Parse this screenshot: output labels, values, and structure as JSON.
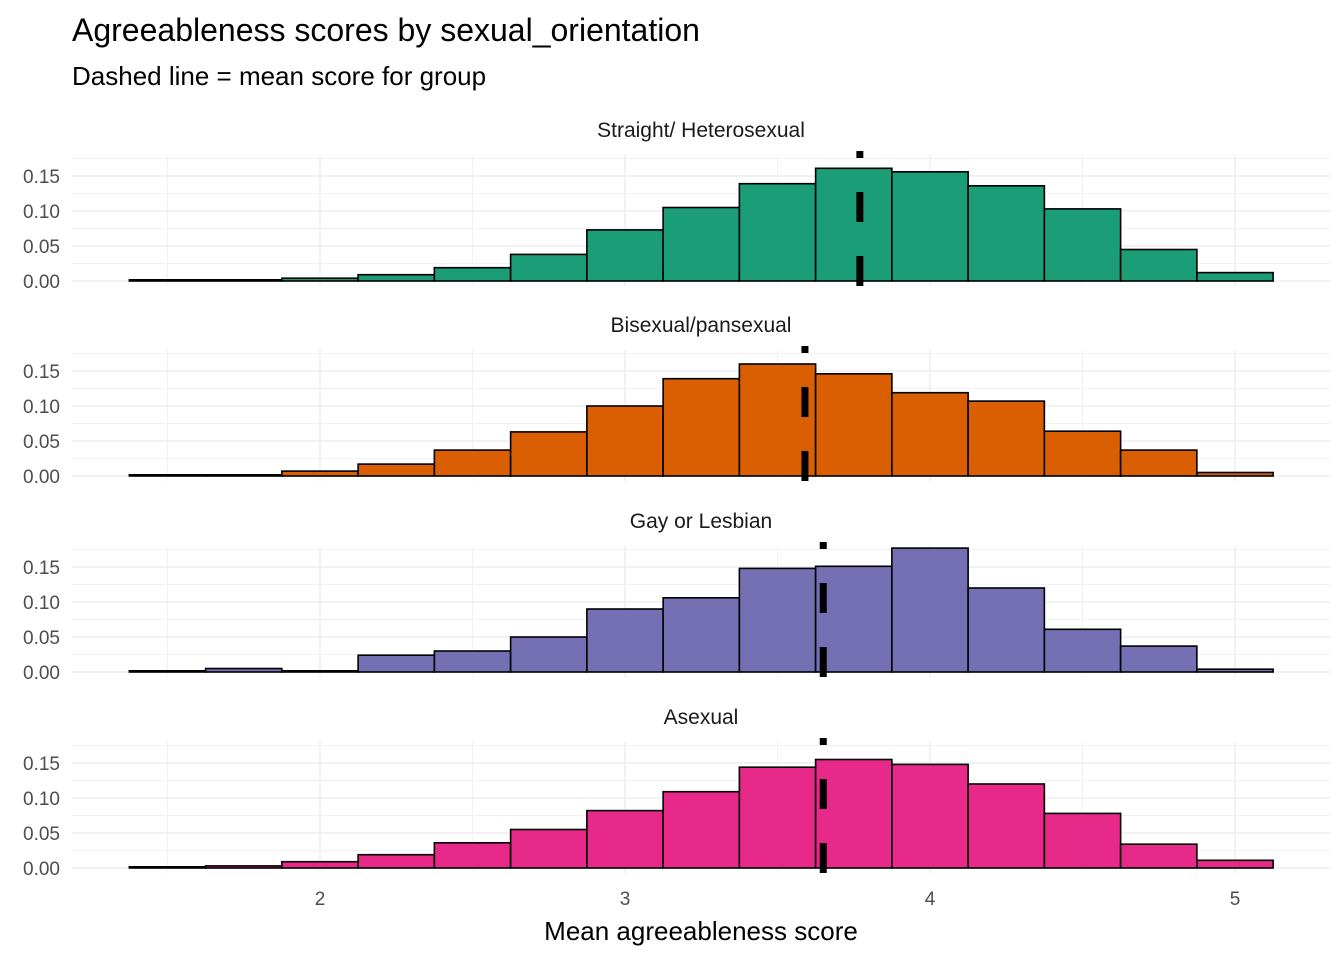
{
  "chart_data": {
    "type": "bar",
    "title": "Agreeableness scores by sexual_orientation",
    "subtitle": "Dashed line = mean score for group",
    "xlabel": "Mean agreeableness score",
    "ylabel": "",
    "xlim": [
      1.25,
      5.15
    ],
    "ylim": [
      0,
      0.18
    ],
    "x_ticks": [
      2,
      3,
      4,
      5
    ],
    "y_ticks": [
      0,
      0.05,
      0.1,
      0.15
    ],
    "y_tick_labels": [
      "0.00",
      "0.05",
      "0.10",
      "0.15"
    ],
    "grid": true,
    "legend": "none",
    "bin_width": 0.25,
    "bin_centers": [
      1.5,
      1.75,
      2.0,
      2.25,
      2.5,
      2.75,
      3.0,
      3.25,
      3.5,
      3.75,
      4.0,
      4.25,
      4.5,
      4.75,
      5.0
    ],
    "series": [
      {
        "name": "Straight/ Heterosexual",
        "color": "#1b9e77",
        "mean": 3.77,
        "values": [
          0.001,
          0.001,
          0.004,
          0.009,
          0.019,
          0.038,
          0.073,
          0.105,
          0.139,
          0.161,
          0.156,
          0.136,
          0.103,
          0.045,
          0.012
        ]
      },
      {
        "name": "Bisexual/pansexual",
        "color": "#d95f02",
        "mean": 3.59,
        "values": [
          0.001,
          0.001,
          0.007,
          0.017,
          0.037,
          0.063,
          0.1,
          0.139,
          0.16,
          0.146,
          0.119,
          0.107,
          0.064,
          0.037,
          0.005
        ]
      },
      {
        "name": "Gay or Lesbian",
        "color": "#7570b3",
        "mean": 3.65,
        "values": [
          0.0,
          0.005,
          0.0,
          0.024,
          0.03,
          0.05,
          0.09,
          0.106,
          0.148,
          0.151,
          0.177,
          0.12,
          0.061,
          0.037,
          0.004
        ]
      },
      {
        "name": "Asexual",
        "color": "#e7298a",
        "mean": 3.65,
        "values": [
          0.0,
          0.003,
          0.009,
          0.019,
          0.036,
          0.055,
          0.082,
          0.109,
          0.144,
          0.155,
          0.148,
          0.12,
          0.078,
          0.034,
          0.011
        ]
      }
    ]
  }
}
